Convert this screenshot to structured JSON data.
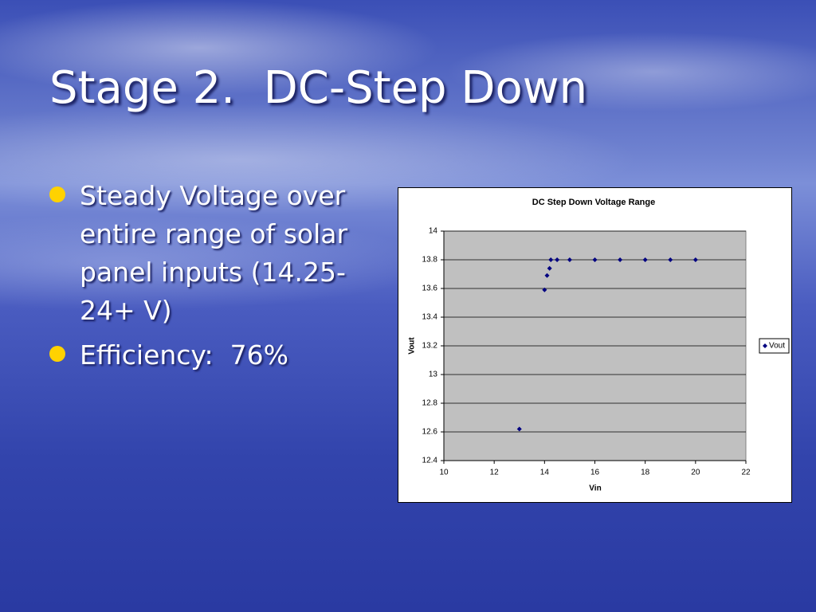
{
  "slide": {
    "title": "Stage 2.  DC-Step Down",
    "bullets": [
      [
        "Steady Voltage over",
        "entire range of solar",
        "panel inputs (14.25-",
        "24+ V)"
      ],
      [
        "Efficiency:  76%"
      ]
    ]
  },
  "chart_data": {
    "type": "scatter",
    "title": "DC Step Down Voltage Range",
    "x_label": "Vin",
    "y_label": "Vout",
    "series": [
      {
        "name": "Vout",
        "color": "#000080",
        "x": [
          13,
          14,
          14.1,
          14.2,
          14.25,
          14.5,
          15,
          16,
          17,
          18,
          19,
          20
        ],
        "values": [
          12.62,
          13.59,
          13.69,
          13.74,
          13.8,
          13.8,
          13.8,
          13.8,
          13.8,
          13.8,
          13.8,
          13.8
        ]
      }
    ],
    "xlim": [
      10,
      22
    ],
    "xticks": [
      10,
      12,
      14,
      16,
      18,
      20,
      22
    ],
    "ylim": [
      12.4,
      14
    ],
    "yticks": [
      12.4,
      12.6,
      12.8,
      13,
      13.2,
      13.4,
      13.6,
      13.8,
      14
    ],
    "grid": true,
    "legend": "right"
  }
}
